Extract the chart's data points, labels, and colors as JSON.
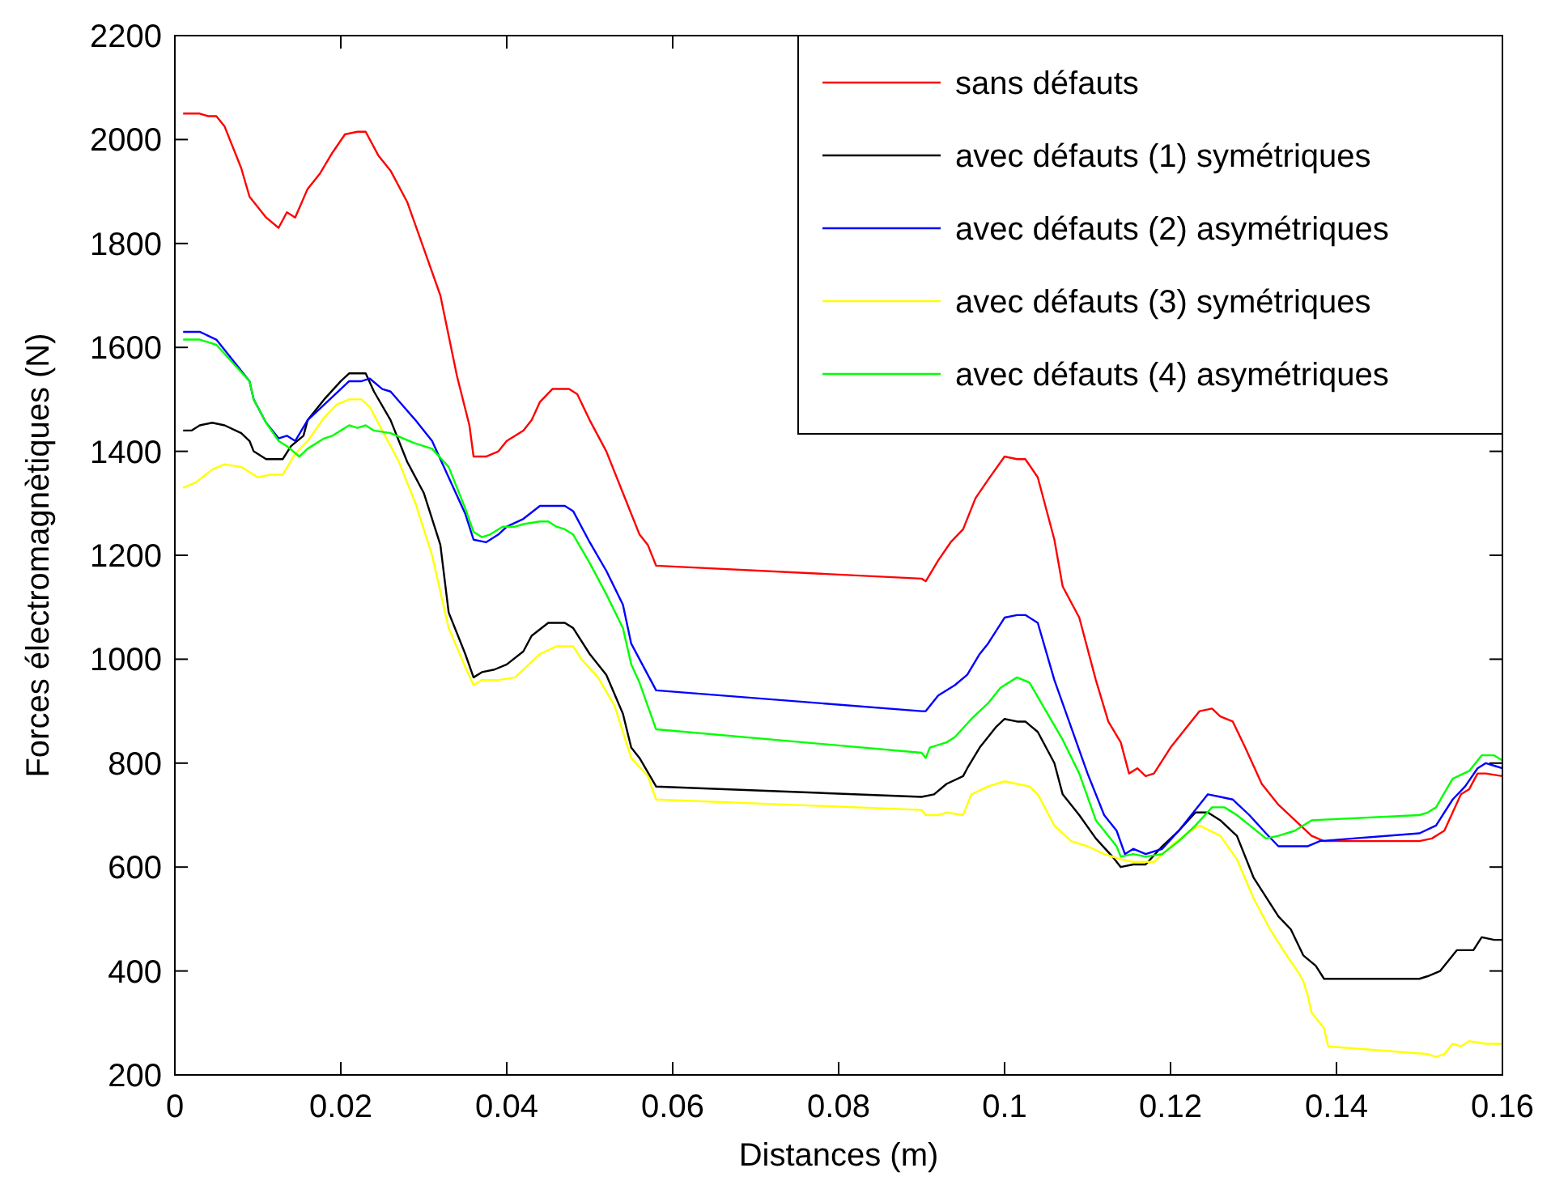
{
  "chart_data": {
    "type": "line",
    "xlabel": "Distances (m)",
    "ylabel": "Forces électromagnètiques (N)",
    "xlim": [
      0,
      0.16
    ],
    "ylim": [
      200,
      2200
    ],
    "xticks": [
      0,
      0.02,
      0.04,
      0.06,
      0.08,
      0.1,
      0.12,
      0.14,
      0.16
    ],
    "yticks": [
      200,
      400,
      600,
      800,
      1000,
      1200,
      1400,
      1600,
      1800,
      2000,
      2200
    ],
    "grid": false,
    "legend": "top right",
    "line_style": "solid",
    "series": [
      {
        "name": "sans défauts",
        "color": "#ff0000",
        "x": [
          0.001,
          0.003,
          0.004,
          0.005,
          0.006,
          0.008,
          0.009,
          0.011,
          0.0125,
          0.0135,
          0.0145,
          0.016,
          0.0175,
          0.019,
          0.0205,
          0.022,
          0.023,
          0.0245,
          0.026,
          0.028,
          0.03,
          0.032,
          0.034,
          0.0355,
          0.036,
          0.0375,
          0.039,
          0.04,
          0.042,
          0.043,
          0.044,
          0.0455,
          0.0475,
          0.0485,
          0.05,
          0.052,
          0.054,
          0.056,
          0.057,
          0.058,
          0.09,
          0.0905,
          0.092,
          0.0935,
          0.095,
          0.0965,
          0.098,
          0.1,
          0.1015,
          0.1025,
          0.104,
          0.106,
          0.107,
          0.109,
          0.111,
          0.1125,
          0.114,
          0.115,
          0.116,
          0.117,
          0.118,
          0.12,
          0.122,
          0.1235,
          0.125,
          0.126,
          0.1275,
          0.129,
          0.131,
          0.133,
          0.135,
          0.137,
          0.1385,
          0.15,
          0.1515,
          0.153,
          0.155,
          0.156,
          0.157,
          0.158,
          0.16
        ],
        "values": [
          2050,
          2050,
          2045,
          2045,
          2025,
          1945,
          1890,
          1850,
          1830,
          1860,
          1850,
          1905,
          1935,
          1975,
          2010,
          2015,
          2015,
          1970,
          1940,
          1880,
          1790,
          1700,
          1545,
          1450,
          1390,
          1390,
          1400,
          1420,
          1440,
          1460,
          1495,
          1520,
          1520,
          1510,
          1460,
          1400,
          1320,
          1240,
          1220,
          1180,
          1155,
          1150,
          1190,
          1225,
          1250,
          1310,
          1345,
          1390,
          1385,
          1385,
          1350,
          1230,
          1140,
          1080,
          960,
          880,
          840,
          780,
          790,
          775,
          780,
          830,
          870,
          900,
          905,
          890,
          880,
          830,
          760,
          720,
          690,
          660,
          650,
          650,
          655,
          670,
          740,
          750,
          780,
          780,
          775
        ]
      },
      {
        "name": "avec défauts (1) symétriques",
        "color": "#000000",
        "x": [
          0.001,
          0.002,
          0.003,
          0.0045,
          0.006,
          0.008,
          0.009,
          0.0095,
          0.011,
          0.0125,
          0.013,
          0.014,
          0.0155,
          0.016,
          0.018,
          0.02,
          0.021,
          0.023,
          0.024,
          0.026,
          0.028,
          0.03,
          0.032,
          0.033,
          0.035,
          0.036,
          0.037,
          0.0385,
          0.04,
          0.042,
          0.043,
          0.045,
          0.047,
          0.048,
          0.05,
          0.052,
          0.054,
          0.055,
          0.056,
          0.058,
          0.09,
          0.0915,
          0.093,
          0.095,
          0.0955,
          0.097,
          0.099,
          0.1,
          0.1015,
          0.1025,
          0.104,
          0.106,
          0.107,
          0.109,
          0.111,
          0.113,
          0.114,
          0.1155,
          0.117,
          0.119,
          0.121,
          0.123,
          0.1245,
          0.126,
          0.128,
          0.13,
          0.132,
          0.133,
          0.1345,
          0.136,
          0.1375,
          0.1385,
          0.15,
          0.151,
          0.1525,
          0.1545,
          0.155,
          0.1565,
          0.1575,
          0.159,
          0.16
        ],
        "values": [
          1440,
          1440,
          1450,
          1455,
          1450,
          1435,
          1420,
          1400,
          1385,
          1385,
          1385,
          1410,
          1430,
          1460,
          1500,
          1535,
          1550,
          1550,
          1515,
          1460,
          1380,
          1320,
          1220,
          1090,
          1010,
          965,
          975,
          980,
          990,
          1015,
          1045,
          1070,
          1070,
          1060,
          1010,
          970,
          895,
          830,
          810,
          755,
          735,
          740,
          760,
          775,
          790,
          830,
          870,
          885,
          880,
          880,
          860,
          800,
          740,
          700,
          655,
          620,
          600,
          605,
          605,
          640,
          670,
          705,
          705,
          690,
          660,
          580,
          530,
          505,
          480,
          430,
          410,
          385,
          385,
          390,
          400,
          440,
          440,
          440,
          465,
          460,
          460
        ]
      },
      {
        "name": "avec défauts (2) asymétriques",
        "color": "#0000ff",
        "x": [
          0.001,
          0.003,
          0.005,
          0.007,
          0.009,
          0.0095,
          0.011,
          0.0125,
          0.0135,
          0.0145,
          0.016,
          0.018,
          0.02,
          0.021,
          0.0225,
          0.0235,
          0.025,
          0.026,
          0.029,
          0.031,
          0.033,
          0.035,
          0.036,
          0.0375,
          0.039,
          0.04,
          0.042,
          0.044,
          0.047,
          0.048,
          0.05,
          0.052,
          0.054,
          0.055,
          0.056,
          0.058,
          0.09,
          0.0905,
          0.092,
          0.094,
          0.0955,
          0.097,
          0.098,
          0.1,
          0.1015,
          0.1025,
          0.104,
          0.106,
          0.108,
          0.11,
          0.112,
          0.1135,
          0.1145,
          0.1155,
          0.117,
          0.119,
          0.121,
          0.123,
          0.1245,
          0.126,
          0.1275,
          0.1295,
          0.1315,
          0.133,
          0.1365,
          0.138,
          0.15,
          0.152,
          0.154,
          0.1555,
          0.157,
          0.158,
          0.159,
          0.16
        ],
        "values": [
          1630,
          1630,
          1615,
          1575,
          1535,
          1500,
          1455,
          1425,
          1430,
          1420,
          1460,
          1490,
          1520,
          1535,
          1535,
          1540,
          1520,
          1515,
          1460,
          1420,
          1350,
          1280,
          1230,
          1225,
          1240,
          1255,
          1270,
          1295,
          1295,
          1285,
          1225,
          1170,
          1105,
          1030,
          1000,
          940,
          900,
          900,
          930,
          950,
          970,
          1010,
          1030,
          1080,
          1085,
          1085,
          1070,
          960,
          870,
          780,
          700,
          670,
          625,
          635,
          625,
          635,
          670,
          710,
          740,
          735,
          730,
          700,
          665,
          640,
          640,
          650,
          665,
          680,
          730,
          755,
          790,
          800,
          795,
          790
        ]
      },
      {
        "name": "avec défauts (3) symétriques",
        "color": "#ffff00",
        "x": [
          0.001,
          0.0025,
          0.0045,
          0.006,
          0.008,
          0.009,
          0.01,
          0.0115,
          0.013,
          0.0145,
          0.016,
          0.018,
          0.0195,
          0.021,
          0.0225,
          0.0235,
          0.025,
          0.027,
          0.029,
          0.031,
          0.033,
          0.035,
          0.036,
          0.037,
          0.039,
          0.041,
          0.043,
          0.044,
          0.046,
          0.048,
          0.049,
          0.051,
          0.053,
          0.055,
          0.057,
          0.058,
          0.09,
          0.0905,
          0.092,
          0.093,
          0.095,
          0.096,
          0.098,
          0.1,
          0.1015,
          0.103,
          0.104,
          0.106,
          0.108,
          0.11,
          0.112,
          0.114,
          0.1155,
          0.118,
          0.12,
          0.122,
          0.1235,
          0.126,
          0.128,
          0.13,
          0.132,
          0.134,
          0.1355,
          0.136,
          0.1365,
          0.137,
          0.1385,
          0.139,
          0.151,
          0.152,
          0.153,
          0.154,
          0.155,
          0.156,
          0.158,
          0.16
        ],
        "values": [
          1330,
          1340,
          1365,
          1375,
          1370,
          1360,
          1350,
          1355,
          1355,
          1395,
          1420,
          1465,
          1490,
          1500,
          1500,
          1485,
          1440,
          1380,
          1300,
          1200,
          1060,
          985,
          950,
          960,
          960,
          965,
          995,
          1010,
          1025,
          1025,
          1000,
          965,
          910,
          810,
          775,
          730,
          710,
          700,
          700,
          705,
          700,
          740,
          755,
          765,
          760,
          755,
          740,
          680,
          650,
          640,
          625,
          615,
          610,
          610,
          640,
          665,
          680,
          660,
          615,
          540,
          480,
          430,
          395,
          380,
          355,
          320,
          290,
          255,
          240,
          235,
          240,
          260,
          255,
          265,
          260,
          260
        ]
      },
      {
        "name": "avec défauts (4) asymétriques",
        "color": "#00ff00",
        "x": [
          0.001,
          0.003,
          0.005,
          0.007,
          0.009,
          0.0095,
          0.011,
          0.0125,
          0.0135,
          0.015,
          0.016,
          0.018,
          0.019,
          0.021,
          0.022,
          0.023,
          0.024,
          0.026,
          0.029,
          0.031,
          0.033,
          0.035,
          0.036,
          0.037,
          0.038,
          0.0395,
          0.041,
          0.042,
          0.044,
          0.045,
          0.046,
          0.047,
          0.048,
          0.05,
          0.052,
          0.054,
          0.055,
          0.056,
          0.058,
          0.09,
          0.0905,
          0.091,
          0.093,
          0.094,
          0.096,
          0.098,
          0.0995,
          0.1015,
          0.103,
          0.105,
          0.107,
          0.109,
          0.111,
          0.112,
          0.1135,
          0.114,
          0.1155,
          0.117,
          0.119,
          0.121,
          0.123,
          0.125,
          0.1265,
          0.128,
          0.1315,
          0.133,
          0.135,
          0.137,
          0.15,
          0.151,
          0.152,
          0.154,
          0.156,
          0.1575,
          0.159,
          0.16
        ],
        "values": [
          1615,
          1615,
          1605,
          1570,
          1535,
          1500,
          1455,
          1420,
          1410,
          1390,
          1405,
          1425,
          1430,
          1450,
          1445,
          1450,
          1440,
          1435,
          1415,
          1405,
          1370,
          1290,
          1245,
          1235,
          1240,
          1255,
          1255,
          1260,
          1265,
          1265,
          1255,
          1250,
          1240,
          1185,
          1125,
          1060,
          990,
          955,
          865,
          820,
          810,
          830,
          840,
          850,
          885,
          915,
          945,
          965,
          955,
          900,
          845,
          780,
          690,
          670,
          640,
          620,
          625,
          620,
          625,
          650,
          680,
          715,
          715,
          700,
          655,
          660,
          670,
          690,
          700,
          705,
          715,
          770,
          785,
          815,
          815,
          805
        ]
      }
    ]
  }
}
